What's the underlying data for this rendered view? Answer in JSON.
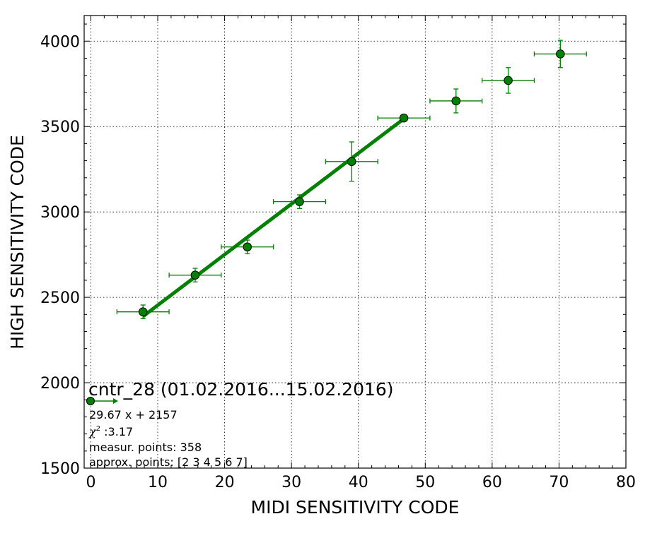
{
  "chart_data": {
    "type": "scatter",
    "title": "",
    "xlabel": "MIDI SENSITIVITY CODE",
    "ylabel": "HIGH SENSITIVITY CODE",
    "xlim": [
      -1,
      80
    ],
    "ylim": [
      1500,
      4150
    ],
    "xticks": [
      0,
      10,
      20,
      30,
      40,
      50,
      60,
      70,
      80
    ],
    "yticks": [
      1500,
      2000,
      2500,
      3000,
      3500,
      4000
    ],
    "grid": true,
    "colors": {
      "series": "#008000",
      "marker_fill": "#008000",
      "marker_edge": "#000000",
      "grid": "#000000"
    },
    "points": [
      {
        "x": 7.8,
        "y": 2415,
        "xerr": 3.9,
        "yerr": 40
      },
      {
        "x": 15.6,
        "y": 2630,
        "xerr": 3.9,
        "yerr": 40
      },
      {
        "x": 23.4,
        "y": 2795,
        "xerr": 3.9,
        "yerr": 40
      },
      {
        "x": 31.2,
        "y": 3060,
        "xerr": 3.9,
        "yerr": 40
      },
      {
        "x": 39.0,
        "y": 3295,
        "xerr": 3.9,
        "yerr": 115
      },
      {
        "x": 46.8,
        "y": 3550,
        "xerr": 3.9,
        "yerr": 0
      },
      {
        "x": 54.6,
        "y": 3650,
        "xerr": 3.9,
        "yerr": 70
      },
      {
        "x": 62.4,
        "y": 3770,
        "xerr": 3.9,
        "yerr": 75
      },
      {
        "x": 70.2,
        "y": 3925,
        "xerr": 3.9,
        "yerr": 80
      }
    ],
    "fit_line": {
      "slope": 29.67,
      "intercept": 2157,
      "x_start": 7.8,
      "x_end": 46.8
    },
    "annotation": {
      "title": "cntr_28 (01.02.2016...15.02.2016)",
      "equation": "29.67 x + 2157",
      "chi2_label": "χ",
      "chi2_sup": "2",
      "chi2_value": " :3.17",
      "measur_points": "measur. points: 358",
      "approx_points": "approx. points: [2 3 4 5 6 7]"
    }
  }
}
